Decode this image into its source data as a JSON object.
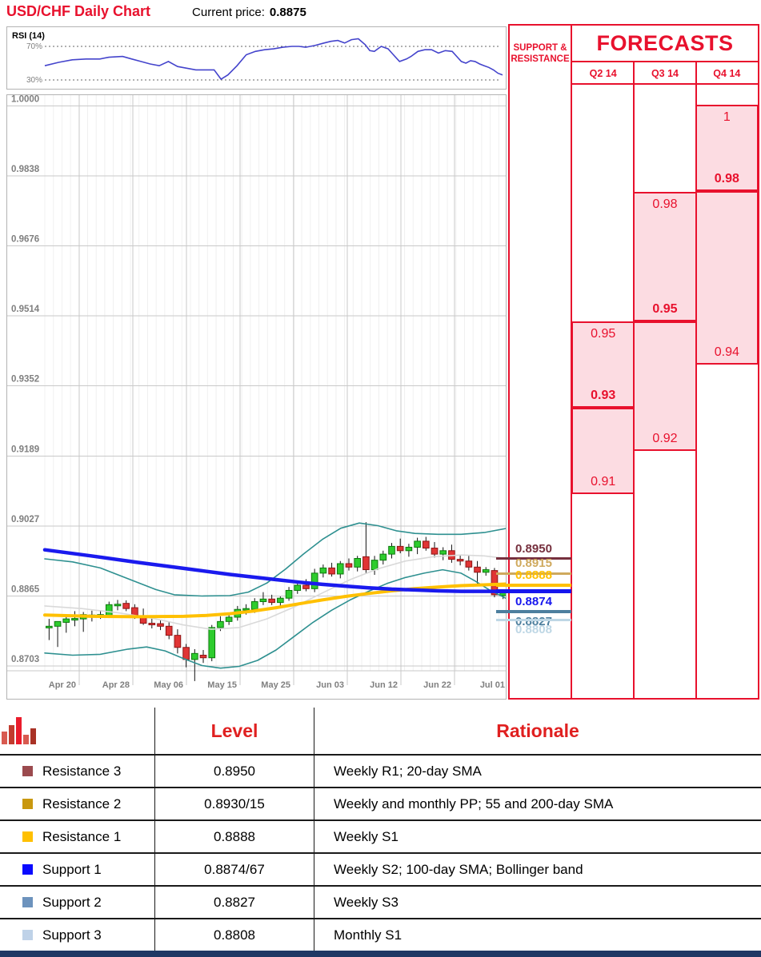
{
  "header": {
    "title": "USD/CHF Daily Chart",
    "current_price_label": "Current price:",
    "current_price": "0.8875"
  },
  "sr_panel": {
    "header_line1": "SUPPORT &",
    "header_line2": "RESISTANCE"
  },
  "forecasts_panel": {
    "title": "FORECASTS"
  },
  "chart_data": {
    "type": "candlestick",
    "title": "USD/CHF Daily Chart",
    "current_price": 0.8875,
    "x_axis": {
      "labels": [
        "Apr 20",
        "Apr 28",
        "May 06",
        "May 15",
        "May 25",
        "Jun 03",
        "Jun 12",
        "Jun 22",
        "Jul 01"
      ]
    },
    "y_axis": {
      "labels": [
        "1.0000",
        "0.9838",
        "0.9676",
        "0.9514",
        "0.9352",
        "0.9189",
        "0.9027",
        "0.8865",
        "0.8703"
      ],
      "ticks": [
        1.0,
        0.9838,
        0.9676,
        0.9514,
        0.9352,
        0.9189,
        0.9027,
        0.8865,
        0.8703
      ],
      "min": 0.8692,
      "max": 1.0025
    },
    "candles_ohlc": [
      [
        0.8793,
        0.8812,
        0.8763,
        0.8795
      ],
      [
        0.8795,
        0.8806,
        0.8747,
        0.8806
      ],
      [
        0.8804,
        0.8818,
        0.878,
        0.8812
      ],
      [
        0.8812,
        0.883,
        0.8795,
        0.8813
      ],
      [
        0.8812,
        0.8828,
        0.8782,
        0.8822
      ],
      [
        0.882,
        0.8831,
        0.8806,
        0.8821
      ],
      [
        0.8821,
        0.8832,
        0.8812,
        0.8822
      ],
      [
        0.882,
        0.8852,
        0.8814,
        0.8845
      ],
      [
        0.8845,
        0.8856,
        0.8832,
        0.8846
      ],
      [
        0.8848,
        0.8855,
        0.883,
        0.8836
      ],
      [
        0.8838,
        0.8846,
        0.8812,
        0.8818
      ],
      [
        0.8818,
        0.8836,
        0.8798,
        0.8802
      ],
      [
        0.8802,
        0.8814,
        0.879,
        0.8801
      ],
      [
        0.8801,
        0.881,
        0.8786,
        0.8795
      ],
      [
        0.8795,
        0.8806,
        0.8765,
        0.8774
      ],
      [
        0.8774,
        0.8788,
        0.8732,
        0.8746
      ],
      [
        0.8746,
        0.8754,
        0.87,
        0.8718
      ],
      [
        0.8718,
        0.8742,
        0.8668,
        0.8732
      ],
      [
        0.8728,
        0.874,
        0.871,
        0.8722
      ],
      [
        0.8722,
        0.8798,
        0.8714,
        0.8792
      ],
      [
        0.8792,
        0.8818,
        0.8784,
        0.8806
      ],
      [
        0.8806,
        0.8824,
        0.8798,
        0.8816
      ],
      [
        0.8816,
        0.8842,
        0.8808,
        0.8834
      ],
      [
        0.8834,
        0.8846,
        0.8822,
        0.8836
      ],
      [
        0.8834,
        0.886,
        0.8826,
        0.8852
      ],
      [
        0.8852,
        0.8874,
        0.8844,
        0.8858
      ],
      [
        0.8858,
        0.8868,
        0.8844,
        0.885
      ],
      [
        0.885,
        0.8864,
        0.8842,
        0.886
      ],
      [
        0.886,
        0.8886,
        0.8854,
        0.8878
      ],
      [
        0.8878,
        0.8896,
        0.887,
        0.889
      ],
      [
        0.889,
        0.8904,
        0.8876,
        0.8882
      ],
      [
        0.8882,
        0.8928,
        0.8874,
        0.8918
      ],
      [
        0.8918,
        0.8938,
        0.8908,
        0.893
      ],
      [
        0.893,
        0.8942,
        0.891,
        0.8916
      ],
      [
        0.8916,
        0.8946,
        0.8906,
        0.894
      ],
      [
        0.894,
        0.8952,
        0.8924,
        0.8932
      ],
      [
        0.8932,
        0.8958,
        0.8922,
        0.8952
      ],
      [
        0.8956,
        0.9036,
        0.8916,
        0.8926
      ],
      [
        0.8926,
        0.8958,
        0.8914,
        0.8948
      ],
      [
        0.8948,
        0.897,
        0.8938,
        0.8962
      ],
      [
        0.8962,
        0.8988,
        0.8952,
        0.898
      ],
      [
        0.898,
        0.8998,
        0.8964,
        0.897
      ],
      [
        0.897,
        0.8986,
        0.8956,
        0.8978
      ],
      [
        0.8978,
        0.9,
        0.8962,
        0.8992
      ],
      [
        0.8992,
        0.9002,
        0.897,
        0.8976
      ],
      [
        0.8976,
        0.899,
        0.8954,
        0.8962
      ],
      [
        0.8962,
        0.8978,
        0.8948,
        0.897
      ],
      [
        0.897,
        0.8984,
        0.8942,
        0.895
      ],
      [
        0.895,
        0.896,
        0.8936,
        0.8946
      ],
      [
        0.8946,
        0.8958,
        0.8924,
        0.8932
      ],
      [
        0.8932,
        0.8946,
        0.889,
        0.892
      ],
      [
        0.892,
        0.8932,
        0.8912,
        0.8926
      ],
      [
        0.8924,
        0.893,
        0.8862,
        0.8868
      ],
      [
        0.8866,
        0.888,
        0.8858,
        0.8876
      ]
    ],
    "overlays": [
      {
        "name": "sma20",
        "color": "#d9d9d9",
        "width": 1.6,
        "points": [
          [
            0,
            0.8842
          ],
          [
            0.08,
            0.8836
          ],
          [
            0.16,
            0.8826
          ],
          [
            0.24,
            0.8812
          ],
          [
            0.3,
            0.8798
          ],
          [
            0.36,
            0.8788
          ],
          [
            0.42,
            0.8792
          ],
          [
            0.48,
            0.8812
          ],
          [
            0.54,
            0.884
          ],
          [
            0.6,
            0.8872
          ],
          [
            0.66,
            0.8903
          ],
          [
            0.72,
            0.8928
          ],
          [
            0.78,
            0.8946
          ],
          [
            0.84,
            0.8956
          ],
          [
            0.9,
            0.896
          ],
          [
            0.95,
            0.8958
          ],
          [
            1,
            0.8952
          ]
        ]
      },
      {
        "name": "bollinger-upper",
        "color": "#2e9090",
        "width": 1.6,
        "points": [
          [
            0,
            0.8951
          ],
          [
            0.06,
            0.8944
          ],
          [
            0.12,
            0.893
          ],
          [
            0.18,
            0.8905
          ],
          [
            0.24,
            0.888
          ],
          [
            0.28,
            0.8868
          ],
          [
            0.34,
            0.8865
          ],
          [
            0.4,
            0.8866
          ],
          [
            0.44,
            0.8874
          ],
          [
            0.48,
            0.8895
          ],
          [
            0.52,
            0.8927
          ],
          [
            0.56,
            0.8963
          ],
          [
            0.6,
            0.8996
          ],
          [
            0.64,
            0.9022
          ],
          [
            0.68,
            0.9034
          ],
          [
            0.72,
            0.9028
          ],
          [
            0.76,
            0.9016
          ],
          [
            0.8,
            0.901
          ],
          [
            0.85,
            0.9008
          ],
          [
            0.9,
            0.9008
          ],
          [
            0.95,
            0.9012
          ],
          [
            1,
            0.9022
          ]
        ]
      },
      {
        "name": "bollinger-lower",
        "color": "#2e9090",
        "width": 1.6,
        "points": [
          [
            0,
            0.8733
          ],
          [
            0.06,
            0.8728
          ],
          [
            0.12,
            0.873
          ],
          [
            0.18,
            0.8742
          ],
          [
            0.22,
            0.8747
          ],
          [
            0.26,
            0.8738
          ],
          [
            0.3,
            0.872
          ],
          [
            0.34,
            0.8704
          ],
          [
            0.38,
            0.8698
          ],
          [
            0.42,
            0.8702
          ],
          [
            0.46,
            0.8716
          ],
          [
            0.5,
            0.874
          ],
          [
            0.54,
            0.8772
          ],
          [
            0.58,
            0.8804
          ],
          [
            0.62,
            0.8832
          ],
          [
            0.66,
            0.8856
          ],
          [
            0.7,
            0.8876
          ],
          [
            0.74,
            0.8894
          ],
          [
            0.78,
            0.8908
          ],
          [
            0.82,
            0.8918
          ],
          [
            0.86,
            0.8926
          ],
          [
            0.9,
            0.8918
          ],
          [
            0.93,
            0.89
          ],
          [
            0.96,
            0.888
          ],
          [
            1,
            0.8858
          ]
        ]
      },
      {
        "name": "sma200",
        "color": "#ffc000",
        "width": 4,
        "points": [
          [
            0,
            0.8821
          ],
          [
            0.1,
            0.8818
          ],
          [
            0.2,
            0.8817
          ],
          [
            0.3,
            0.8818
          ],
          [
            0.35,
            0.882
          ],
          [
            0.4,
            0.8824
          ],
          [
            0.45,
            0.883
          ],
          [
            0.5,
            0.8838
          ],
          [
            0.55,
            0.8847
          ],
          [
            0.6,
            0.8856
          ],
          [
            0.65,
            0.8864
          ],
          [
            0.7,
            0.8871
          ],
          [
            0.75,
            0.8877
          ],
          [
            0.8,
            0.8882
          ],
          [
            0.85,
            0.8886
          ],
          [
            0.9,
            0.8889
          ],
          [
            0.95,
            0.8891
          ],
          [
            1,
            0.8893
          ]
        ]
      },
      {
        "name": "sma100",
        "color": "#1a1aee",
        "width": 4.5,
        "points": [
          [
            0,
            0.8972
          ],
          [
            0.1,
            0.8958
          ],
          [
            0.2,
            0.8943
          ],
          [
            0.3,
            0.8929
          ],
          [
            0.4,
            0.8915
          ],
          [
            0.5,
            0.8903
          ],
          [
            0.55,
            0.8897
          ],
          [
            0.6,
            0.8892
          ],
          [
            0.65,
            0.8888
          ],
          [
            0.7,
            0.8884
          ],
          [
            0.75,
            0.8881
          ],
          [
            0.8,
            0.8879
          ],
          [
            0.85,
            0.8877
          ],
          [
            0.9,
            0.8876
          ],
          [
            0.95,
            0.8876
          ],
          [
            1,
            0.8876
          ]
        ]
      }
    ],
    "rsi": {
      "label": "RSI (14)",
      "upper_label": "70%",
      "lower_label": "30%",
      "upper_level": 70,
      "lower_level": 30,
      "color": "#4444cc",
      "points": [
        [
          0,
          47
        ],
        [
          0.03,
          51
        ],
        [
          0.06,
          54
        ],
        [
          0.09,
          55
        ],
        [
          0.12,
          55
        ],
        [
          0.14,
          57
        ],
        [
          0.17,
          58
        ],
        [
          0.19,
          55
        ],
        [
          0.21,
          52
        ],
        [
          0.23,
          49
        ],
        [
          0.25,
          47
        ],
        [
          0.27,
          52
        ],
        [
          0.29,
          46
        ],
        [
          0.31,
          44
        ],
        [
          0.33,
          42
        ],
        [
          0.35,
          42
        ],
        [
          0.37,
          42
        ],
        [
          0.385,
          31
        ],
        [
          0.4,
          36
        ],
        [
          0.42,
          47
        ],
        [
          0.44,
          60
        ],
        [
          0.46,
          64
        ],
        [
          0.48,
          66
        ],
        [
          0.5,
          67
        ],
        [
          0.52,
          69
        ],
        [
          0.54,
          70
        ],
        [
          0.555,
          70
        ],
        [
          0.57,
          69
        ],
        [
          0.59,
          71
        ],
        [
          0.61,
          74
        ],
        [
          0.625,
          76
        ],
        [
          0.64,
          77
        ],
        [
          0.655,
          74
        ],
        [
          0.67,
          78
        ],
        [
          0.685,
          79
        ],
        [
          0.7,
          72
        ],
        [
          0.71,
          65
        ],
        [
          0.72,
          64
        ],
        [
          0.735,
          70
        ],
        [
          0.75,
          67
        ],
        [
          0.76,
          61
        ],
        [
          0.775,
          52
        ],
        [
          0.79,
          55
        ],
        [
          0.8,
          58
        ],
        [
          0.815,
          64
        ],
        [
          0.83,
          66
        ],
        [
          0.845,
          66
        ],
        [
          0.86,
          62
        ],
        [
          0.875,
          65
        ],
        [
          0.89,
          64
        ],
        [
          0.9,
          58
        ],
        [
          0.91,
          52
        ],
        [
          0.92,
          50
        ],
        [
          0.93,
          53
        ],
        [
          0.94,
          52
        ],
        [
          0.95,
          49
        ],
        [
          0.96,
          47
        ],
        [
          0.97,
          45
        ],
        [
          0.98,
          42
        ],
        [
          0.99,
          38
        ],
        [
          1,
          36
        ]
      ]
    },
    "support_resistance": [
      {
        "label": "0.8950",
        "price": 0.895,
        "color": "#76303e",
        "label_side": "above",
        "line_width": 3
      },
      {
        "label": "0.8915",
        "price": 0.8915,
        "color": "#cfa95d",
        "label_side": "above",
        "line_width": 3.5
      },
      {
        "label": "0.8888",
        "price": 0.8888,
        "color": "#ffc000",
        "label_side": "above",
        "line_width": 4
      },
      {
        "label": "0.8874",
        "price": 0.8874,
        "color": "#1616ee",
        "label_side": "below",
        "line_width": 4.5
      },
      {
        "label": "0.8827",
        "price": 0.8827,
        "color": "#4d7f9e",
        "label_side": "below",
        "line_width": 3.5
      },
      {
        "label": "0.8808",
        "price": 0.8808,
        "color": "#bed7e5",
        "label_side": "below",
        "line_width": 3
      }
    ],
    "forecasts": [
      {
        "label": "Q2 14",
        "range_top": 0.95,
        "range_bottom": 0.91,
        "target": 0.93,
        "range_top_label": "0.95",
        "target_label": "0.93",
        "range_bottom_label": "0.91"
      },
      {
        "label": "Q3 14",
        "range_top": 0.98,
        "range_bottom": 0.92,
        "target": 0.95,
        "range_top_label": "0.98",
        "target_label": "0.95",
        "range_bottom_label": "0.92"
      },
      {
        "label": "Q4 14",
        "range_top": 1.0,
        "range_bottom": 0.94,
        "target": 0.98,
        "range_top_label": "1",
        "target_label": "0.98",
        "range_bottom_label": "0.94"
      }
    ],
    "colors": {
      "accent_red": "#e8112d",
      "forecast_fill": "#fcdce2",
      "candle_up": "#2ecc2e",
      "candle_up_stroke": "#0b7a0b",
      "candle_down": "#e03535",
      "candle_down_stroke": "#8f1414",
      "grid": "#c9c9c9",
      "grid_minor": "#f0f0f0",
      "axis_text": "#7f7f7f"
    }
  },
  "table": {
    "level_header": "Level",
    "rationale_header": "Rationale",
    "rows": [
      {
        "swatch": "#9b4a4e",
        "label": "Resistance 3",
        "level": "0.8950",
        "rationale": "Weekly R1; 20-day SMA"
      },
      {
        "swatch": "#c9980f",
        "label": "Resistance 2",
        "level": "0.8930/15",
        "rationale": "Weekly and monthly PP; 55 and 200-day SMA"
      },
      {
        "swatch": "#ffc000",
        "label": "Resistance 1",
        "level": "0.8888",
        "rationale": "Weekly S1"
      },
      {
        "swatch": "#0a0aff",
        "label": "Support 1",
        "level": "0.8874/67",
        "rationale": "Weekly S2; 100-day SMA; Bollinger band"
      },
      {
        "swatch": "#6d93bd",
        "label": "Support 2",
        "level": "0.8827",
        "rationale": "Weekly S3"
      },
      {
        "swatch": "#bfd2e8",
        "label": "Support 3",
        "level": "0.8808",
        "rationale": "Monthly S1"
      }
    ]
  }
}
